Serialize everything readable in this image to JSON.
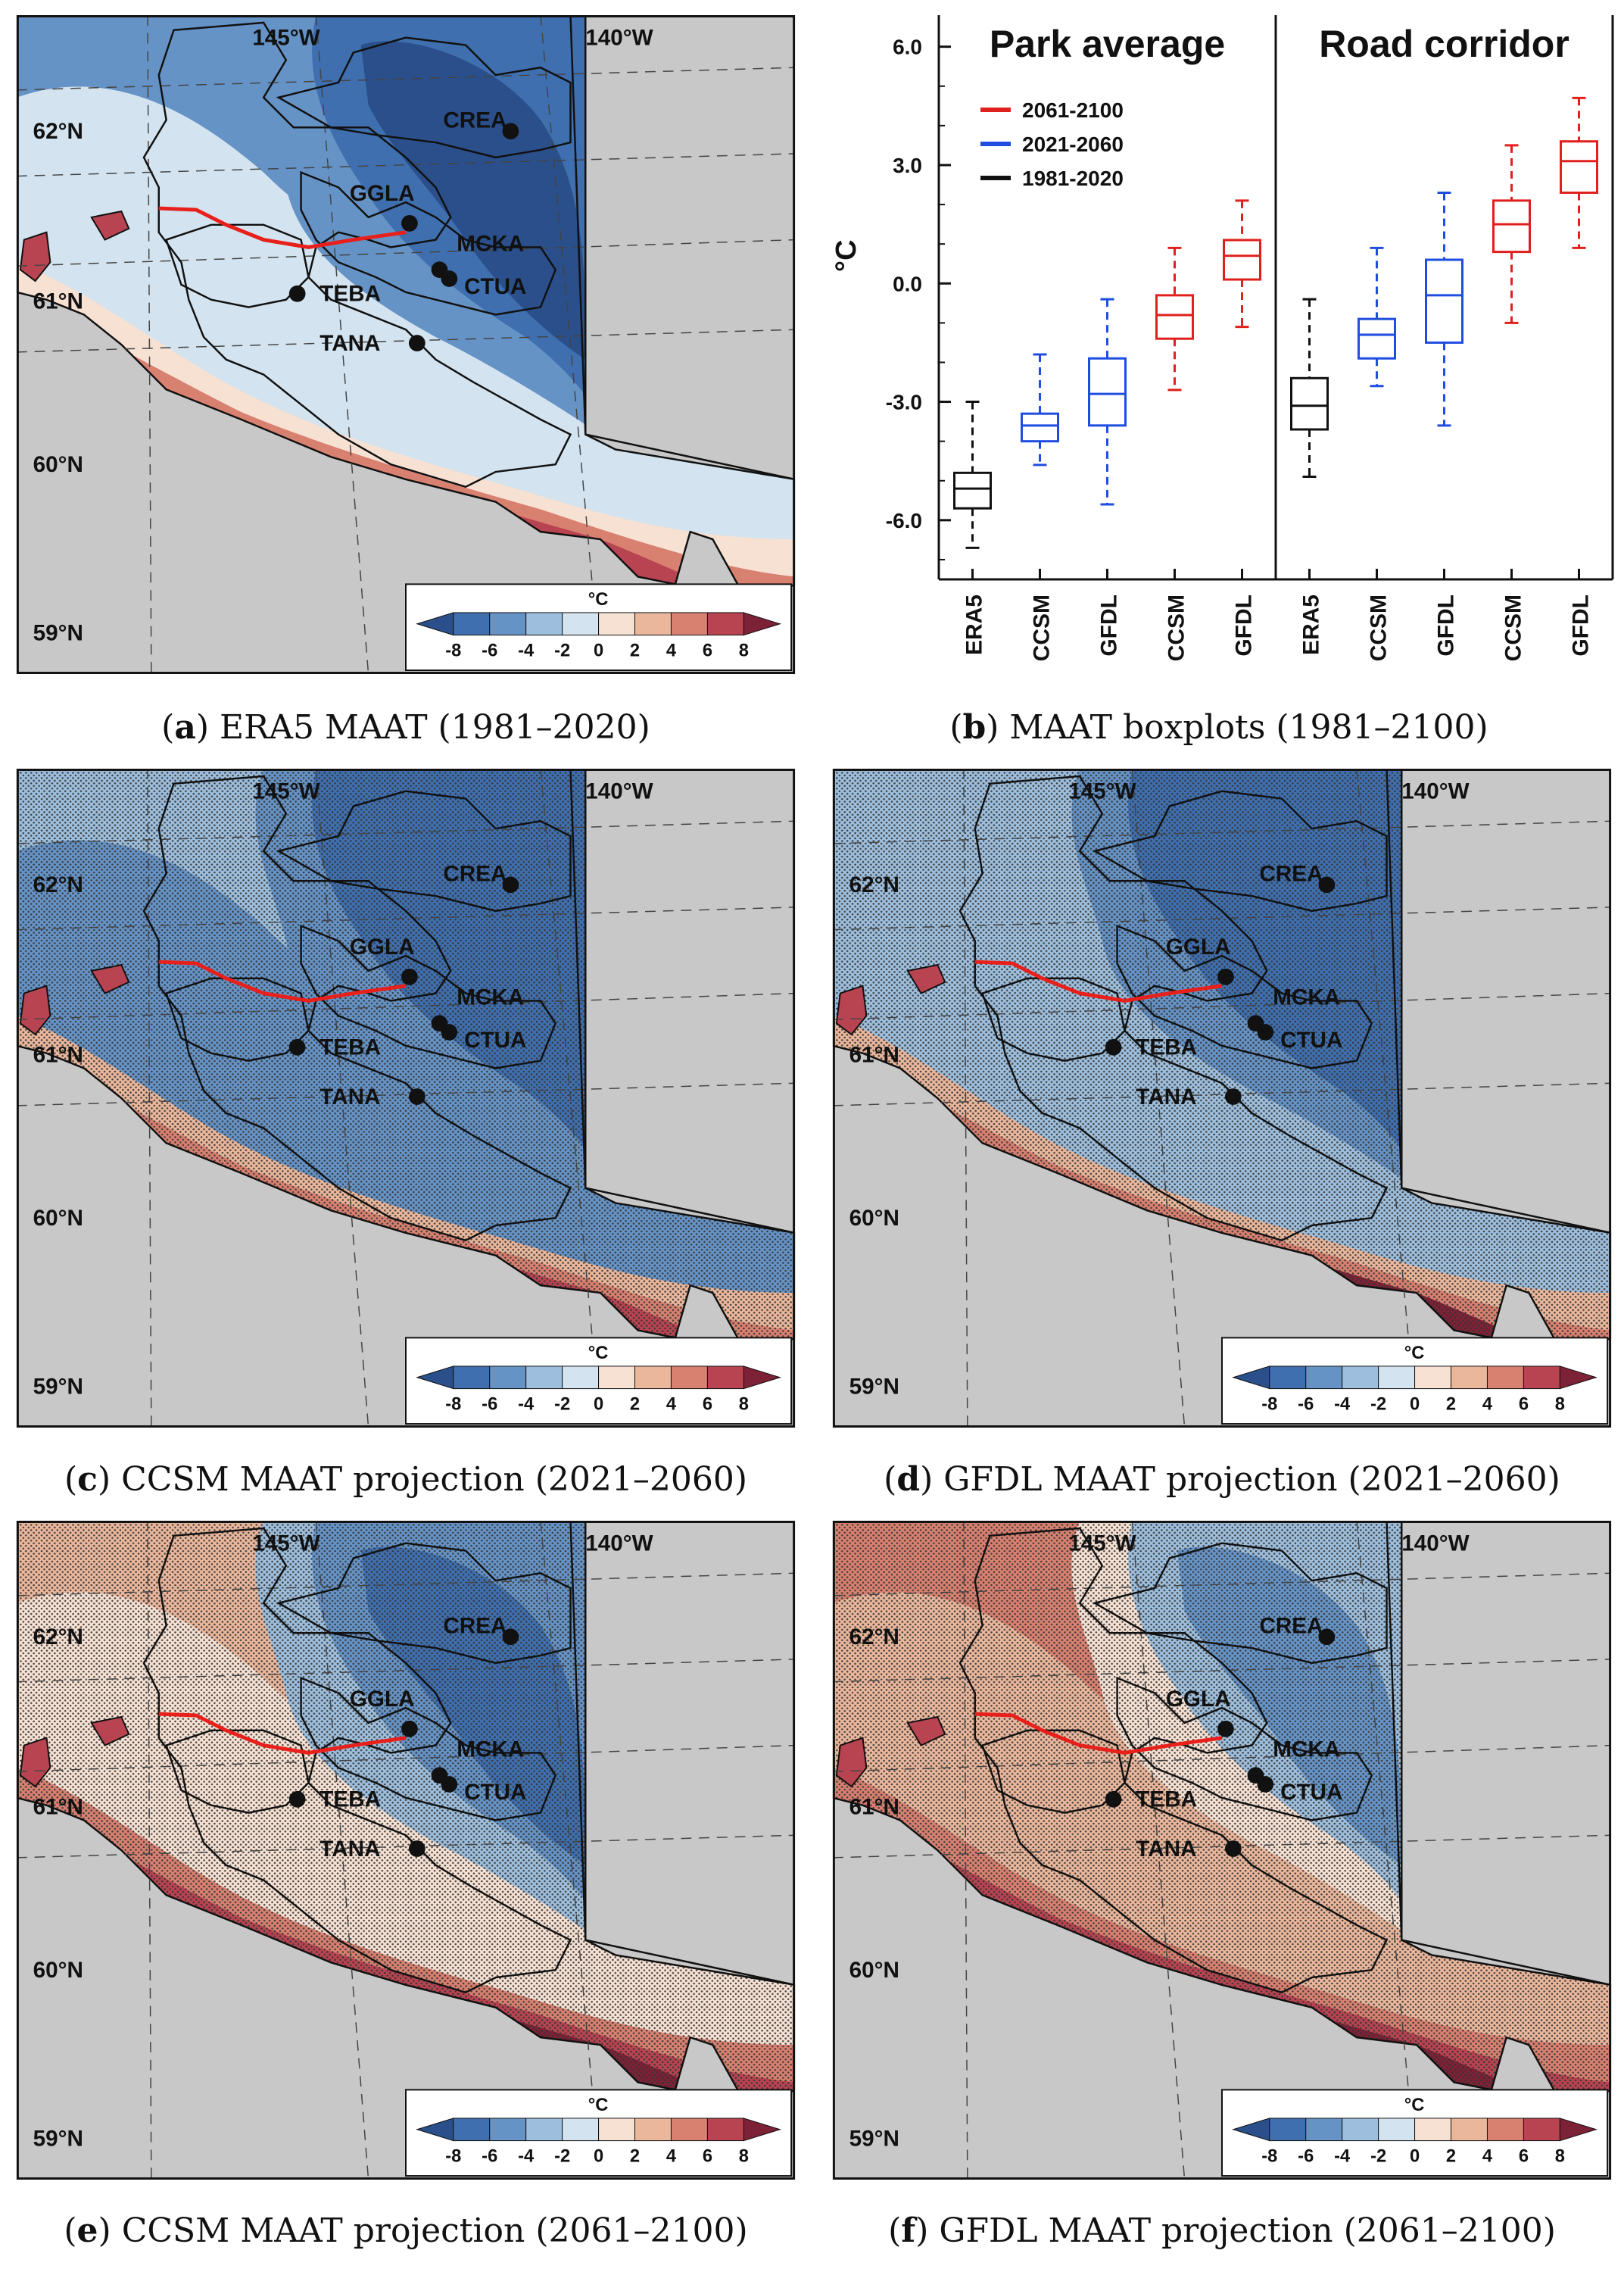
{
  "colors": {
    "ocean": "#c8c8c8",
    "stipple": "#333333",
    "road": "#e8201c",
    "outline": "#111111",
    "period_2061_2100": "#e0201c",
    "period_2021_2060": "#1f4de0",
    "period_1981_2020": "#111111"
  },
  "colorbar": {
    "unit": "°C",
    "ticks": [
      "-8",
      "-6",
      "-4",
      "-2",
      "0",
      "2",
      "4",
      "6",
      "8"
    ],
    "colors": [
      "#2a4f8a",
      "#3f6fae",
      "#6693c6",
      "#9dbedc",
      "#d3e3ef",
      "#f6e1d3",
      "#eab79c",
      "#d98171",
      "#b84451",
      "#7d2136"
    ]
  },
  "maps": {
    "lon_labels": [
      "145°W",
      "140°W"
    ],
    "lat_labels": [
      "62°N",
      "61°N",
      "60°N",
      "59°N"
    ],
    "stations": [
      "CREA",
      "GGLA",
      "MCKA",
      "CTUA",
      "TEBA",
      "TANA"
    ]
  },
  "panels": [
    {
      "id": "a",
      "letter": "a",
      "caption": " ERA5 MAAT (1981–2020)",
      "stippled": false
    },
    {
      "id": "c",
      "letter": "c",
      "caption": " CCSM MAAT projection (2021–2060)",
      "stippled": true
    },
    {
      "id": "d",
      "letter": "d",
      "caption": " GFDL MAAT projection (2021–2060)",
      "stippled": true
    },
    {
      "id": "e",
      "letter": "e",
      "caption": " CCSM MAAT projection (2061–2100)",
      "stippled": true
    },
    {
      "id": "f",
      "letter": "f",
      "caption": " GFDL MAAT projection (2061–2100)",
      "stippled": true
    }
  ],
  "boxplot_caption": {
    "letter": "b",
    "text": " MAAT boxplots (1981–2100)"
  },
  "chart_data": {
    "type": "box",
    "ylabel": "°C",
    "ylim": [
      -7.5,
      6.8
    ],
    "yticks": [
      "6.0",
      "3.0",
      "0.0",
      "-3.0",
      "-6.0"
    ],
    "ytick_values": [
      6.0,
      3.0,
      0.0,
      -3.0,
      -6.0
    ],
    "groups": [
      "Park average",
      "Road corridor"
    ],
    "legend": [
      "2061-2100",
      "2021-2060",
      "1981-2020"
    ],
    "categories": [
      "ERA5",
      "CCSM",
      "GFDL",
      "CCSM",
      "GFDL",
      "ERA5",
      "CCSM",
      "GFDL",
      "CCSM",
      "GFDL"
    ],
    "boxes": [
      {
        "label": "ERA5",
        "group": "Park average",
        "period": "1981-2020",
        "whisker_low": -6.7,
        "q1": -5.7,
        "median": -5.2,
        "q3": -4.8,
        "whisker_high": -3.0
      },
      {
        "label": "CCSM",
        "group": "Park average",
        "period": "2021-2060",
        "whisker_low": -4.6,
        "q1": -4.0,
        "median": -3.6,
        "q3": -3.3,
        "whisker_high": -1.8
      },
      {
        "label": "GFDL",
        "group": "Park average",
        "period": "2021-2060",
        "whisker_low": -5.6,
        "q1": -3.6,
        "median": -2.8,
        "q3": -1.9,
        "whisker_high": -0.4
      },
      {
        "label": "CCSM",
        "group": "Park average",
        "period": "2061-2100",
        "whisker_low": -2.7,
        "q1": -1.4,
        "median": -0.8,
        "q3": -0.3,
        "whisker_high": 0.9
      },
      {
        "label": "GFDL",
        "group": "Park average",
        "period": "2061-2100",
        "whisker_low": -1.1,
        "q1": 0.1,
        "median": 0.7,
        "q3": 1.1,
        "whisker_high": 2.1
      },
      {
        "label": "ERA5",
        "group": "Road corridor",
        "period": "1981-2020",
        "whisker_low": -4.9,
        "q1": -3.7,
        "median": -3.1,
        "q3": -2.4,
        "whisker_high": -0.4
      },
      {
        "label": "CCSM",
        "group": "Road corridor",
        "period": "2021-2060",
        "whisker_low": -2.6,
        "q1": -1.9,
        "median": -1.3,
        "q3": -0.9,
        "whisker_high": 0.9
      },
      {
        "label": "GFDL",
        "group": "Road corridor",
        "period": "2021-2060",
        "whisker_low": -3.6,
        "q1": -1.5,
        "median": -0.3,
        "q3": 0.6,
        "whisker_high": 2.3
      },
      {
        "label": "CCSM",
        "group": "Road corridor",
        "period": "2061-2100",
        "whisker_low": -1.0,
        "q1": 0.8,
        "median": 1.5,
        "q3": 2.1,
        "whisker_high": 3.5
      },
      {
        "label": "GFDL",
        "group": "Road corridor",
        "period": "2061-2100",
        "whisker_low": 0.9,
        "q1": 2.3,
        "median": 3.1,
        "q3": 3.6,
        "whisker_high": 4.7
      }
    ]
  }
}
